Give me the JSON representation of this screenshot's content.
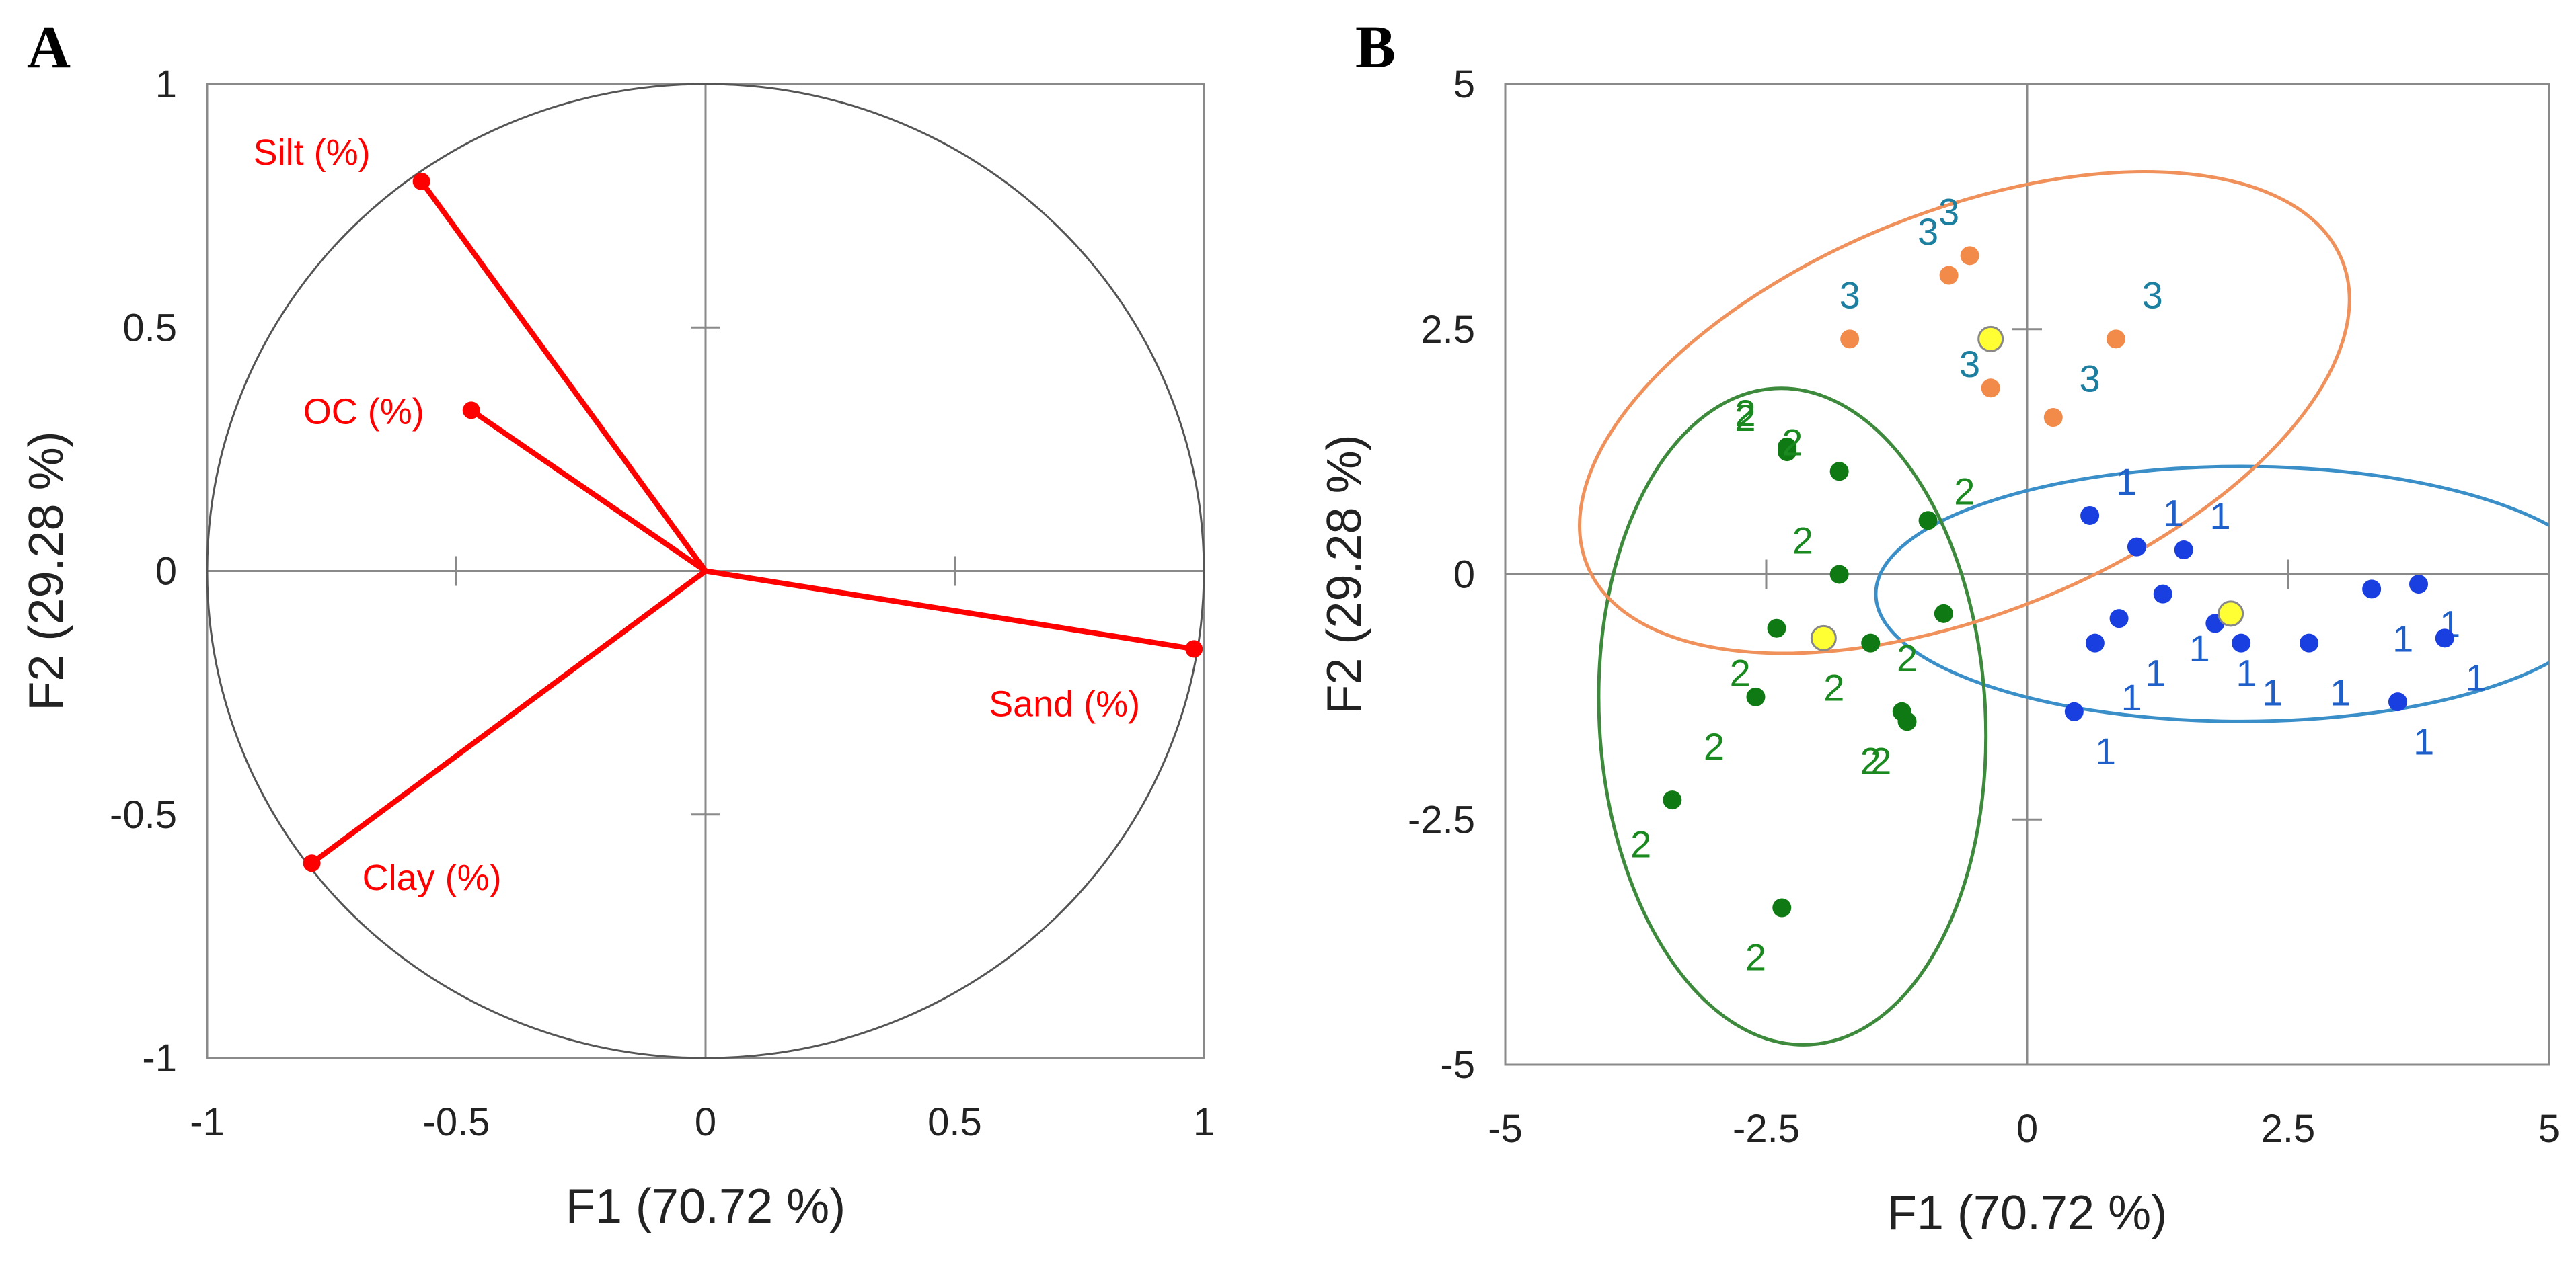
{
  "chart_data": [
    {
      "panel": "A",
      "type": "scatter",
      "subtype": "pca-correlation-circle",
      "xlabel": "F1 (70.72 %)",
      "ylabel": "F2 (29.28 %)",
      "xlim": [
        -1,
        1
      ],
      "ylim": [
        -1,
        1
      ],
      "xticks": [
        "-1",
        "-0.5",
        "0",
        "0.5",
        "1"
      ],
      "yticks": [
        "-1",
        "-0.5",
        "0",
        "0.5",
        "1"
      ],
      "vector_color": "#ff0000",
      "vectors": [
        {
          "label": "Silt (%)",
          "x": -0.57,
          "y": 0.8
        },
        {
          "label": "OC (%)",
          "x": -0.47,
          "y": 0.33
        },
        {
          "label": "Sand (%)",
          "x": 0.98,
          "y": -0.16
        },
        {
          "label": "Clay (%)",
          "x": -0.79,
          "y": -0.6
        }
      ]
    },
    {
      "panel": "B",
      "type": "scatter",
      "subtype": "pca-scores",
      "xlabel": "F1 (70.72 %)",
      "ylabel": "F2 (29.28 %)",
      "xlim": [
        -5,
        5
      ],
      "ylim": [
        -5,
        5
      ],
      "xticks": [
        "-5",
        "-2.5",
        "0",
        "2.5",
        "5"
      ],
      "yticks": [
        "-5",
        "-2.5",
        "0",
        "2.5",
        "5"
      ],
      "series": [
        {
          "name": "1",
          "marker_color": "#1a3fe0",
          "label_color": "#1f5fc9",
          "ellipse_color": "#3b8fc8",
          "points": [
            [
              0.6,
              0.6
            ],
            [
              1.05,
              0.28
            ],
            [
              1.5,
              0.25
            ],
            [
              1.3,
              -0.2
            ],
            [
              0.88,
              -0.45
            ],
            [
              0.65,
              -0.7
            ],
            [
              1.8,
              -0.5
            ],
            [
              2.05,
              -0.7
            ],
            [
              2.7,
              -0.7
            ],
            [
              3.3,
              -0.15
            ],
            [
              3.75,
              -0.1
            ],
            [
              4.0,
              -0.65
            ],
            [
              3.55,
              -1.3
            ],
            [
              0.45,
              -1.4
            ]
          ],
          "label_offsets": [
            [
              0.35,
              0.35
            ],
            [
              0.35,
              0.35
            ],
            [
              0.35,
              0.35
            ],
            [
              0.35,
              -0.55
            ],
            [
              0.35,
              -0.55
            ],
            [
              0.35,
              -0.55
            ],
            [
              0.3,
              -0.5
            ],
            [
              0.3,
              -0.5
            ],
            [
              0.3,
              -0.5
            ],
            [
              0.3,
              -0.5
            ],
            [
              0.3,
              -0.4
            ],
            [
              0.3,
              -0.4
            ],
            [
              0.25,
              -0.4
            ],
            [
              0.3,
              -0.4
            ]
          ],
          "ellipse": {
            "cx": 2.05,
            "cy": -0.2,
            "rx": 3.5,
            "ry": 1.3,
            "angle_deg": 0
          }
        },
        {
          "name": "2",
          "marker_color": "#0f7a14",
          "label_color": "#1a8a20",
          "ellipse_color": "#3d8a3d",
          "points": [
            [
              -2.3,
              1.3
            ],
            [
              -2.3,
              1.25
            ],
            [
              -1.8,
              1.05
            ],
            [
              -0.95,
              0.55
            ],
            [
              -1.8,
              0.0
            ],
            [
              -1.5,
              -0.7
            ],
            [
              -0.8,
              -0.4
            ],
            [
              -2.4,
              -0.55
            ],
            [
              -2.6,
              -1.25
            ],
            [
              -1.2,
              -1.4
            ],
            [
              -1.15,
              -1.5
            ],
            [
              -3.4,
              -2.3
            ],
            [
              -2.35,
              -3.4
            ]
          ],
          "label_offsets": [
            [
              -0.4,
              0.35
            ],
            [
              -0.4,
              0.35
            ],
            [
              -0.45,
              0.3
            ],
            [
              0.35,
              0.3
            ],
            [
              -0.35,
              0.35
            ],
            [
              -0.35,
              -0.45
            ],
            [
              -0.35,
              -0.45
            ],
            [
              -0.35,
              -0.45
            ],
            [
              -0.4,
              -0.5
            ],
            [
              -0.3,
              -0.5
            ],
            [
              -0.25,
              -0.4
            ],
            [
              -0.3,
              -0.45
            ],
            [
              -0.25,
              -0.5
            ]
          ],
          "ellipse": {
            "cx": -2.25,
            "cy": -1.45,
            "rx": 1.85,
            "ry": 3.35,
            "angle_deg": -3
          }
        },
        {
          "name": "3",
          "marker_color": "#f28a4a",
          "label_color": "#1d7fa0",
          "ellipse_color": "#f0905a",
          "points": [
            [
              -0.75,
              3.05
            ],
            [
              -0.55,
              3.25
            ],
            [
              -1.7,
              2.4
            ],
            [
              -0.35,
              1.9
            ],
            [
              0.85,
              2.4
            ],
            [
              0.25,
              1.6
            ]
          ],
          "label_offsets": [
            [
              -0.2,
              0.45
            ],
            [
              -0.2,
              0.45
            ],
            [
              0.0,
              0.45
            ],
            [
              -0.2,
              0.25
            ],
            [
              0.35,
              0.45
            ],
            [
              0.35,
              0.4
            ]
          ],
          "ellipse": {
            "cx": -0.6,
            "cy": 1.65,
            "rx": 3.9,
            "ry": 2.05,
            "angle_deg": -22
          }
        }
      ],
      "centroids": {
        "color": "#ffff33",
        "edge_color": "#888888",
        "points": [
          [
            -0.35,
            2.4
          ],
          [
            -1.95,
            -0.65
          ],
          [
            1.95,
            -0.4
          ]
        ]
      }
    }
  ],
  "panels": {
    "A": {
      "letter": "A"
    },
    "B": {
      "letter": "B"
    }
  }
}
